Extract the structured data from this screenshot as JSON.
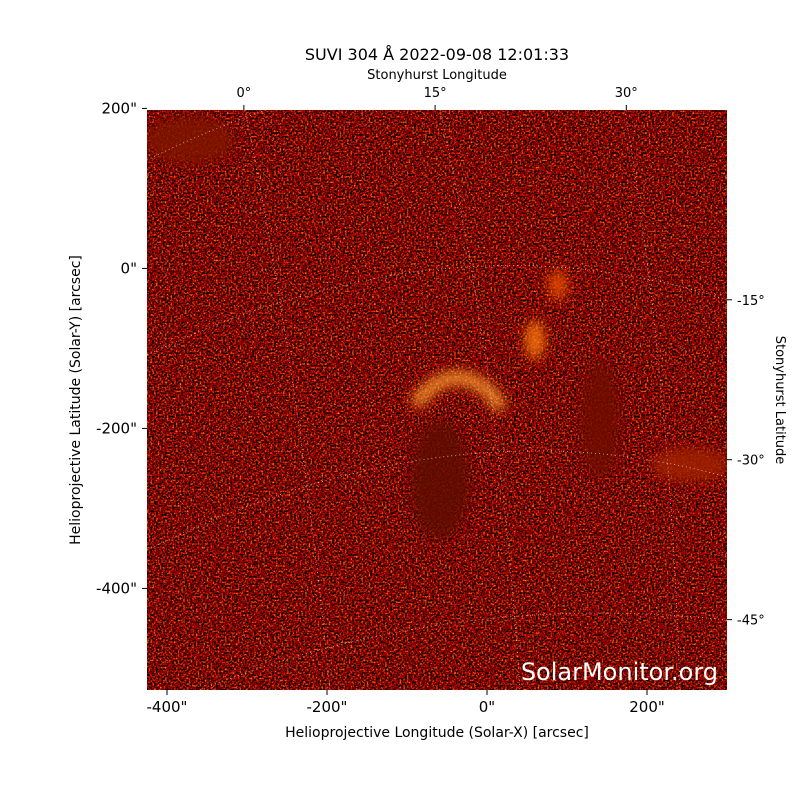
{
  "chart_data": {
    "type": "image",
    "title": "SUVI 304 Å 2022-09-08 12:01:33",
    "x_label": "Helioprojective Longitude (Solar-X) [arcsec]",
    "y_label": "Helioprojective Latitude (Solar-Y) [arcsec]",
    "x2_label": "Stonyhurst Longitude",
    "y2_label": "Stonyhurst Latitude",
    "watermark": "SolarMonitor.org",
    "xlim": [
      -425,
      300
    ],
    "ylim": [
      -527,
      198
    ],
    "xticks": [
      {
        "value": -400,
        "label": "-400\""
      },
      {
        "value": -200,
        "label": "-200\""
      },
      {
        "value": 0,
        "label": "0\""
      },
      {
        "value": 200,
        "label": "200\""
      }
    ],
    "yticks": [
      {
        "value": -400,
        "label": "-400\""
      },
      {
        "value": -200,
        "label": "-200\""
      },
      {
        "value": 0,
        "label": "0\""
      },
      {
        "value": 200,
        "label": "200\""
      }
    ],
    "x2lim": [
      -7.6,
      37.9
    ],
    "x2ticks": [
      {
        "value": 0,
        "label": "0°"
      },
      {
        "value": 15,
        "label": "15°"
      },
      {
        "value": 30,
        "label": "30°"
      }
    ],
    "y2lim": [
      2.8,
      -51.6
    ],
    "y2ticks": [
      {
        "value": -15,
        "label": "-15°"
      },
      {
        "value": -30,
        "label": "-30°"
      },
      {
        "value": -45,
        "label": "-45°"
      }
    ]
  }
}
